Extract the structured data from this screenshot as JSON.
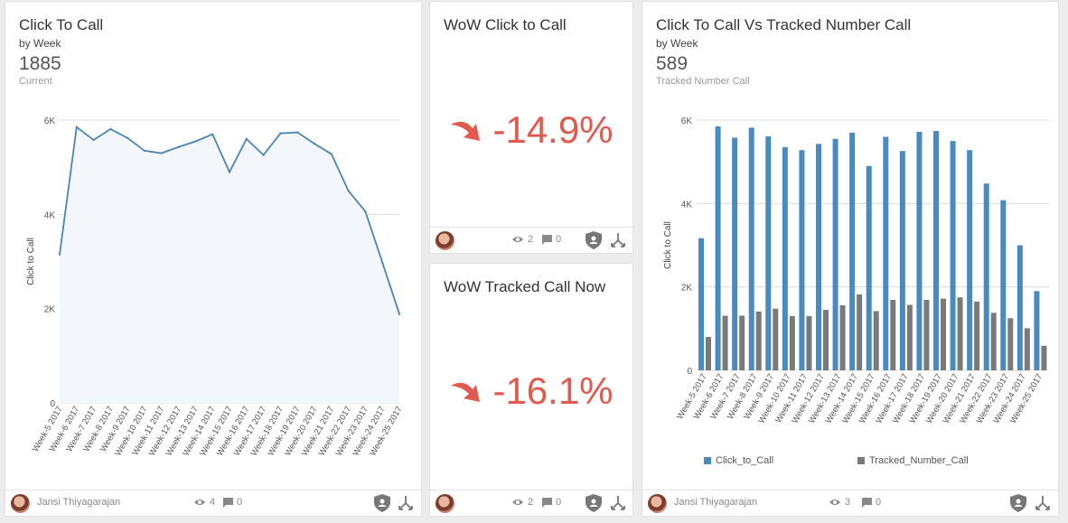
{
  "colors": {
    "line": "#4b86b4",
    "area": "#f3f7fb",
    "bar_blue": "#4a8bbf",
    "bar_gray": "#7a7a7a",
    "negative": "#e05a4f"
  },
  "card1": {
    "title": "Click To Call",
    "subtitle": "by Week",
    "kpi_value": "1885",
    "kpi_label": "Current",
    "footer": {
      "author": "Jansi Thiyagarajan",
      "views": "4",
      "comments": "0"
    }
  },
  "card2": {
    "title": "WoW Click to Call",
    "value": "-14.9%",
    "footer": {
      "views": "2",
      "comments": "0"
    }
  },
  "card3": {
    "title": "WoW Tracked Call Now",
    "value": "-16.1%",
    "footer": {
      "views": "2",
      "comments": "0"
    }
  },
  "card4": {
    "title": "Click To Call Vs Tracked Number Call",
    "subtitle": "by Week",
    "kpi_value": "589",
    "kpi_label": "Tracked Number Call",
    "footer": {
      "author": "Jansi Thiyagarajan",
      "views": "3",
      "comments": "0"
    }
  },
  "chart_data": [
    {
      "type": "area",
      "title": "Click To Call",
      "ylabel": "Click to Call",
      "xlabel": "",
      "ylim": [
        0,
        6000
      ],
      "yticks": [
        0,
        2000,
        4000,
        6000
      ],
      "ytick_labels": [
        "0",
        "2K",
        "4K",
        "6K"
      ],
      "categories": [
        "Week-5 2017",
        "Week-6 2017",
        "Week-7 2017",
        "Week-8 2017",
        "Week-9 2017",
        "Week-10 2017",
        "Week-11 2017",
        "Week-12 2017",
        "Week-13 2017",
        "Week-14 2017",
        "Week-15 2017",
        "Week-16 2017",
        "Week-17 2017",
        "Week-18 2017",
        "Week-19 2017",
        "Week-20 2017",
        "Week-21 2017",
        "Week-22 2017",
        "Week-23 2017",
        "Week-24 2017",
        "Week-25 2017"
      ],
      "values": [
        3150,
        5850,
        5580,
        5810,
        5620,
        5350,
        5300,
        5430,
        5550,
        5700,
        4900,
        5600,
        5260,
        5720,
        5740,
        5500,
        5280,
        4500,
        4060,
        2980,
        1885
      ]
    },
    {
      "type": "bar",
      "title": "Click To Call Vs Tracked Number Call",
      "ylabel": "Click to Call",
      "xlabel": "",
      "ylim": [
        0,
        6000
      ],
      "yticks": [
        0,
        2000,
        4000,
        6000
      ],
      "ytick_labels": [
        "0",
        "2K",
        "4K",
        "6K"
      ],
      "legend_position": "bottom",
      "categories": [
        "Week-5 2017",
        "Week-6 2017",
        "Week-7 2017",
        "Week-8 2017",
        "Week-9 2017",
        "Week-10 2017",
        "Week-11 2017",
        "Week-12 2017",
        "Week-13 2017",
        "Week-14 2017",
        "Week-15 2017",
        "Week-16 2017",
        "Week-17 2017",
        "Week-18 2017",
        "Week-19 2017",
        "Week-20 2017",
        "Week-21 2017",
        "Week-22 2017",
        "Week-23 2017",
        "Week-24 2017",
        "Week-25 2017"
      ],
      "series": [
        {
          "name": "Click_to_Call",
          "values": [
            3170,
            5850,
            5580,
            5820,
            5610,
            5350,
            5280,
            5430,
            5550,
            5700,
            4900,
            5600,
            5260,
            5720,
            5740,
            5500,
            5280,
            4480,
            4080,
            3000,
            1900
          ]
        },
        {
          "name": "Tracked_Number_Call",
          "values": [
            800,
            1310,
            1310,
            1410,
            1480,
            1300,
            1300,
            1450,
            1560,
            1820,
            1420,
            1690,
            1570,
            1690,
            1720,
            1750,
            1650,
            1380,
            1250,
            1010,
            589
          ]
        }
      ]
    }
  ]
}
